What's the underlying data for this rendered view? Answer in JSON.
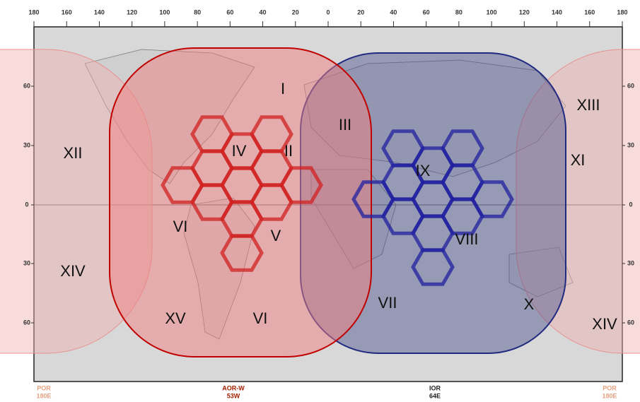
{
  "map": {
    "top_labels": [
      180,
      160,
      140,
      120,
      100,
      80,
      60,
      40,
      20,
      0,
      20,
      40,
      60,
      80,
      100,
      120,
      140,
      160,
      180
    ],
    "left_labels": [
      60,
      30,
      0,
      30,
      60
    ],
    "right_labels": [
      60,
      30,
      0,
      30,
      60
    ],
    "regions": [
      "XII",
      "IV",
      "II",
      "III",
      "XIII",
      "XI",
      "XIV",
      "VI",
      "V",
      "VIII",
      "XV",
      "VI",
      "VII",
      "X",
      "XIV",
      "I",
      "IX"
    ],
    "satellites": [
      {
        "name": "POR",
        "position": "180E"
      },
      {
        "name": "AOR-W",
        "position": "53W"
      },
      {
        "name": "IOR",
        "position": "64E"
      },
      {
        "name": "POR",
        "position": "180E"
      }
    ]
  }
}
